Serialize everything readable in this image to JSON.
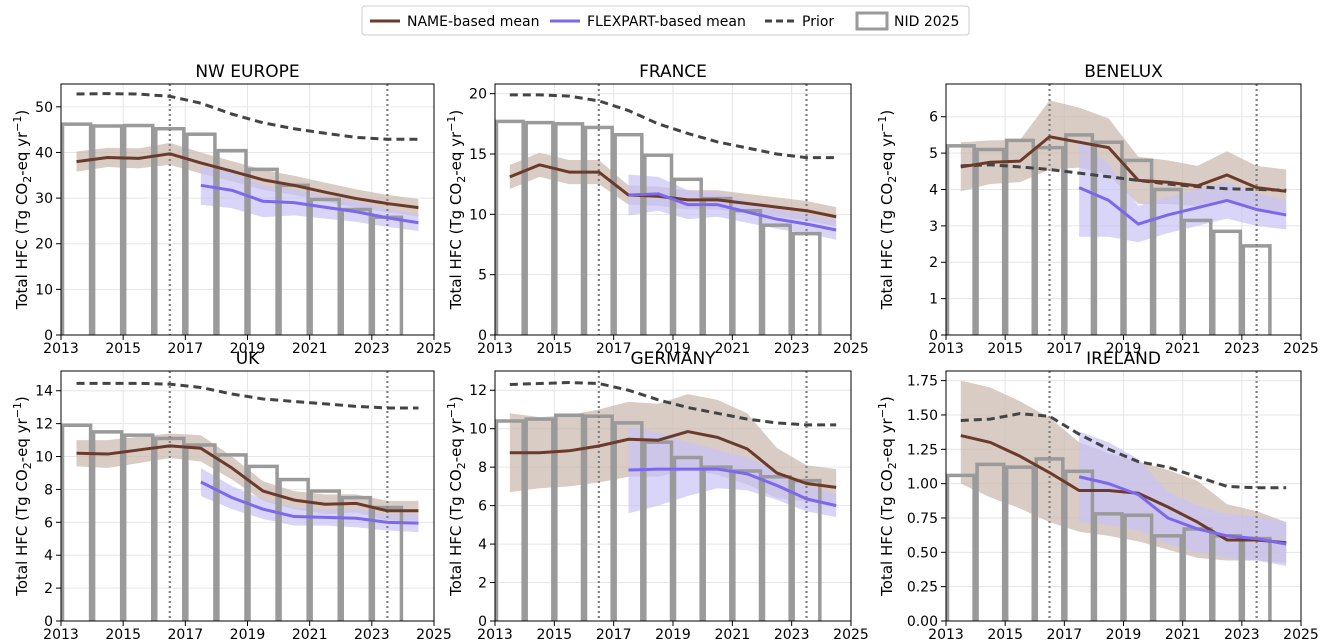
{
  "legend": {
    "name_label": "NAME-based mean",
    "flex_label": "FLEXPART-based mean",
    "prior_label": "Prior",
    "nid_label": "NID 2025"
  },
  "colors": {
    "name": "#6b3a2a",
    "name_band": "#c9b6ad",
    "flex": "#7b68ee",
    "flex_band": "#c8c3f7",
    "prior": "#444444",
    "nid_bar": "#9a9a9a",
    "vline": "#808080"
  },
  "ylabel_main": "Total HFC  (Tg CO",
  "ylabel_sub": "2",
  "ylabel_mid": "-eq yr",
  "ylabel_sup": "−1",
  "ylabel_end": ")",
  "chart_data": [
    {
      "type": "line",
      "title": "NW EUROPE",
      "xlim": [
        2013,
        2025
      ],
      "ylim": [
        0,
        55
      ],
      "yticks": [
        0,
        10,
        20,
        30,
        40,
        50
      ],
      "ytick_labels": [
        "0",
        "10",
        "20",
        "30",
        "40",
        "50"
      ],
      "xticks": [
        2013,
        2015,
        2017,
        2019,
        2021,
        2023,
        2025
      ],
      "xtick_labels": [
        "2013",
        "2015",
        "2017",
        "2019",
        "2021",
        "2023",
        "2025"
      ],
      "vlines": [
        2016.5,
        2023.5
      ],
      "nid": {
        "years": [
          2013,
          2014,
          2015,
          2016,
          2017,
          2018,
          2019,
          2020,
          2021,
          2022,
          2023
        ],
        "values": [
          46.2,
          45.8,
          45.9,
          45.2,
          44.0,
          40.4,
          36.3,
          32.8,
          29.7,
          27.5,
          25.8
        ]
      },
      "prior": {
        "x": [
          2013.5,
          2014.5,
          2015.5,
          2016.5,
          2017.5,
          2018.5,
          2019.5,
          2020.5,
          2021.5,
          2022.5,
          2023.5,
          2024.5
        ],
        "values": [
          52.8,
          52.9,
          52.8,
          52.3,
          50.8,
          48.4,
          46.5,
          45.2,
          44.2,
          43.3,
          42.9,
          42.9
        ]
      },
      "name_mean": {
        "x": [
          2013.5,
          2014.5,
          2015.5,
          2016.5,
          2017.5,
          2018.5,
          2019.5,
          2020.5,
          2021.5,
          2022.5,
          2023.5,
          2024.5
        ],
        "values": [
          38.0,
          38.9,
          38.7,
          39.7,
          37.7,
          35.9,
          34.0,
          32.8,
          31.3,
          29.9,
          28.8,
          27.9
        ],
        "lower": [
          35.8,
          36.8,
          36.5,
          37.3,
          35.4,
          33.7,
          31.8,
          30.7,
          29.2,
          27.9,
          26.9,
          26.0
        ],
        "upper": [
          40.2,
          41.0,
          40.9,
          42.1,
          40.0,
          38.1,
          36.2,
          34.9,
          33.4,
          31.9,
          30.7,
          29.8
        ]
      },
      "flex_mean": {
        "x": [
          2017.5,
          2018.5,
          2019.5,
          2020.5,
          2021.5,
          2022.5,
          2023.5,
          2024.5
        ],
        "values": [
          32.8,
          31.7,
          29.3,
          29.0,
          28.0,
          27.0,
          25.7,
          24.6
        ],
        "lower": [
          28.5,
          27.8,
          25.8,
          26.2,
          25.5,
          24.8,
          23.7,
          22.8
        ],
        "upper": [
          37.1,
          35.6,
          32.8,
          31.8,
          30.5,
          29.2,
          27.7,
          26.4
        ]
      }
    },
    {
      "type": "line",
      "title": "FRANCE",
      "xlim": [
        2013,
        2025
      ],
      "ylim": [
        0,
        20.8
      ],
      "yticks": [
        0,
        5,
        10,
        15,
        20
      ],
      "ytick_labels": [
        "0",
        "5",
        "10",
        "15",
        "20"
      ],
      "xticks": [
        2013,
        2015,
        2017,
        2019,
        2021,
        2023,
        2025
      ],
      "xtick_labels": [
        "2013",
        "2015",
        "2017",
        "2019",
        "2021",
        "2023",
        "2025"
      ],
      "vlines": [
        2016.5,
        2023.5
      ],
      "nid": {
        "years": [
          2013,
          2014,
          2015,
          2016,
          2017,
          2018,
          2019,
          2020,
          2021,
          2022,
          2023
        ],
        "values": [
          17.7,
          17.6,
          17.5,
          17.2,
          16.6,
          14.9,
          12.9,
          11.3,
          10.3,
          9.1,
          8.4
        ]
      },
      "prior": {
        "x": [
          2013.5,
          2014.5,
          2015.5,
          2016.5,
          2017.5,
          2018.5,
          2019.5,
          2020.5,
          2021.5,
          2022.5,
          2023.5,
          2024.5
        ],
        "values": [
          19.9,
          19.9,
          19.8,
          19.4,
          18.6,
          17.5,
          16.7,
          16.0,
          15.5,
          15.0,
          14.7,
          14.7
        ]
      },
      "name_mean": {
        "x": [
          2013.5,
          2014.5,
          2015.5,
          2016.5,
          2017.5,
          2018.5,
          2019.5,
          2020.5,
          2021.5,
          2022.5,
          2023.5,
          2024.5
        ],
        "values": [
          13.1,
          14.1,
          13.5,
          13.5,
          11.6,
          11.5,
          11.2,
          11.2,
          10.9,
          10.6,
          10.3,
          9.8
        ],
        "lower": [
          12.1,
          13.1,
          12.5,
          12.5,
          10.8,
          10.7,
          10.4,
          10.4,
          10.1,
          9.8,
          9.5,
          9.0
        ],
        "upper": [
          14.1,
          15.1,
          14.5,
          14.5,
          12.4,
          12.3,
          12.0,
          12.0,
          11.7,
          11.4,
          11.1,
          10.6
        ]
      },
      "flex_mean": {
        "x": [
          2017.5,
          2018.5,
          2019.5,
          2020.5,
          2021.5,
          2022.5,
          2023.5,
          2024.5
        ],
        "values": [
          11.6,
          11.7,
          10.8,
          10.8,
          10.2,
          9.6,
          9.2,
          8.7
        ],
        "lower": [
          9.9,
          10.3,
          9.6,
          9.8,
          9.3,
          8.8,
          8.4,
          7.9
        ],
        "upper": [
          13.3,
          13.1,
          12.0,
          11.8,
          11.1,
          10.4,
          10.0,
          9.5
        ]
      }
    },
    {
      "type": "line",
      "title": "BENELUX",
      "xlim": [
        2013,
        2025
      ],
      "ylim": [
        0,
        6.9
      ],
      "yticks": [
        0,
        1,
        2,
        3,
        4,
        5,
        6
      ],
      "ytick_labels": [
        "0",
        "1",
        "2",
        "3",
        "4",
        "5",
        "6"
      ],
      "xticks": [
        2013,
        2015,
        2017,
        2019,
        2021,
        2023,
        2025
      ],
      "xtick_labels": [
        "2013",
        "2015",
        "2017",
        "2019",
        "2021",
        "2023",
        "2025"
      ],
      "vlines": [
        2016.5,
        2023.5
      ],
      "nid": {
        "years": [
          2013,
          2014,
          2015,
          2016,
          2017,
          2018,
          2019,
          2020,
          2021,
          2022,
          2023
        ],
        "values": [
          5.2,
          5.1,
          5.35,
          5.15,
          5.5,
          5.3,
          4.8,
          4.0,
          3.15,
          2.85,
          2.45
        ]
      },
      "prior": {
        "x": [
          2013.5,
          2014.5,
          2015.5,
          2016.5,
          2017.5,
          2018.5,
          2019.5,
          2020.5,
          2021.5,
          2022.5,
          2023.5,
          2024.5
        ],
        "values": [
          4.65,
          4.68,
          4.62,
          4.55,
          4.45,
          4.35,
          4.25,
          4.15,
          4.08,
          4.02,
          4.0,
          3.98
        ]
      },
      "name_mean": {
        "x": [
          2013.5,
          2014.5,
          2015.5,
          2016.5,
          2017.5,
          2018.5,
          2019.5,
          2020.5,
          2021.5,
          2022.5,
          2023.5,
          2024.5
        ],
        "values": [
          4.62,
          4.75,
          4.78,
          5.45,
          5.3,
          5.15,
          4.25,
          4.2,
          4.1,
          4.4,
          4.05,
          3.95
        ],
        "lower": [
          3.95,
          4.15,
          4.2,
          4.55,
          4.6,
          4.4,
          3.6,
          3.6,
          3.55,
          3.75,
          3.45,
          3.35
        ],
        "upper": [
          5.3,
          5.35,
          5.36,
          6.45,
          6.25,
          5.95,
          4.9,
          4.8,
          4.65,
          5.05,
          4.65,
          4.55
        ]
      },
      "flex_mean": {
        "x": [
          2017.5,
          2018.5,
          2019.5,
          2020.5,
          2021.5,
          2022.5,
          2023.5,
          2024.5
        ],
        "values": [
          4.05,
          3.7,
          3.05,
          3.3,
          3.5,
          3.7,
          3.45,
          3.3
        ],
        "lower": [
          2.7,
          2.7,
          2.55,
          2.8,
          3.0,
          3.2,
          3.0,
          2.9
        ],
        "upper": [
          5.4,
          4.7,
          3.55,
          3.8,
          4.0,
          4.2,
          3.9,
          3.7
        ]
      }
    },
    {
      "type": "line",
      "title": "UK",
      "xlim": [
        2013,
        2025
      ],
      "ylim": [
        0,
        15.2
      ],
      "yticks": [
        0,
        2,
        4,
        6,
        8,
        10,
        12,
        14
      ],
      "ytick_labels": [
        "0",
        "2",
        "4",
        "6",
        "8",
        "10",
        "12",
        "14"
      ],
      "xticks": [
        2013,
        2015,
        2017,
        2019,
        2021,
        2023,
        2025
      ],
      "xtick_labels": [
        "2013",
        "2015",
        "2017",
        "2019",
        "2021",
        "2023",
        "2025"
      ],
      "vlines": [
        2016.5,
        2023.5
      ],
      "nid": {
        "years": [
          2013,
          2014,
          2015,
          2016,
          2017,
          2018,
          2019,
          2020,
          2021,
          2022,
          2023
        ],
        "values": [
          11.9,
          11.5,
          11.3,
          11.1,
          10.7,
          10.1,
          9.4,
          8.6,
          7.9,
          7.5,
          6.9
        ]
      },
      "prior": {
        "x": [
          2013.5,
          2014.5,
          2015.5,
          2016.5,
          2017.5,
          2018.5,
          2019.5,
          2020.5,
          2021.5,
          2022.5,
          2023.5,
          2024.5
        ],
        "values": [
          14.45,
          14.45,
          14.45,
          14.4,
          14.2,
          13.8,
          13.5,
          13.35,
          13.2,
          13.05,
          12.95,
          12.95
        ]
      },
      "name_mean": {
        "x": [
          2013.5,
          2014.5,
          2015.5,
          2016.5,
          2017.5,
          2018.5,
          2019.5,
          2020.5,
          2021.5,
          2022.5,
          2023.5,
          2024.5
        ],
        "values": [
          10.2,
          10.15,
          10.4,
          10.65,
          10.5,
          9.3,
          7.9,
          7.35,
          7.1,
          7.15,
          6.7,
          6.7
        ],
        "lower": [
          9.4,
          9.3,
          9.6,
          9.9,
          9.7,
          8.6,
          7.3,
          6.8,
          6.5,
          6.6,
          6.1,
          6.1
        ],
        "upper": [
          11.0,
          11.0,
          11.2,
          11.4,
          11.3,
          10.0,
          8.5,
          7.9,
          7.7,
          7.7,
          7.3,
          7.3
        ]
      },
      "flex_mean": {
        "x": [
          2017.5,
          2018.5,
          2019.5,
          2020.5,
          2021.5,
          2022.5,
          2023.5,
          2024.5
        ],
        "values": [
          8.45,
          7.5,
          6.8,
          6.35,
          6.3,
          6.25,
          6.0,
          5.95
        ],
        "lower": [
          7.6,
          6.8,
          6.2,
          5.8,
          5.8,
          5.7,
          5.5,
          5.4
        ],
        "upper": [
          9.3,
          8.2,
          7.4,
          6.9,
          6.8,
          6.8,
          6.5,
          6.5
        ]
      }
    },
    {
      "type": "line",
      "title": "GERMANY",
      "xlim": [
        2013,
        2025
      ],
      "ylim": [
        0,
        13.0
      ],
      "yticks": [
        0,
        2,
        4,
        6,
        8,
        10,
        12
      ],
      "ytick_labels": [
        "0",
        "2",
        "4",
        "6",
        "8",
        "10",
        "12"
      ],
      "xticks": [
        2013,
        2015,
        2017,
        2019,
        2021,
        2023,
        2025
      ],
      "xtick_labels": [
        "2013",
        "2015",
        "2017",
        "2019",
        "2021",
        "2023",
        "2025"
      ],
      "vlines": [
        2016.5,
        2023.5
      ],
      "nid": {
        "years": [
          2013,
          2014,
          2015,
          2016,
          2017,
          2018,
          2019,
          2020,
          2021,
          2022,
          2023
        ],
        "values": [
          10.4,
          10.5,
          10.7,
          10.65,
          10.3,
          9.3,
          8.5,
          8.0,
          7.8,
          7.5,
          7.3
        ]
      },
      "prior": {
        "x": [
          2013.5,
          2014.5,
          2015.5,
          2016.5,
          2017.5,
          2018.5,
          2019.5,
          2020.5,
          2021.5,
          2022.5,
          2023.5,
          2024.5
        ],
        "values": [
          12.3,
          12.35,
          12.4,
          12.35,
          12.0,
          11.5,
          11.1,
          10.8,
          10.5,
          10.3,
          10.2,
          10.2
        ]
      },
      "name_mean": {
        "x": [
          2013.5,
          2014.5,
          2015.5,
          2016.5,
          2017.5,
          2018.5,
          2019.5,
          2020.5,
          2021.5,
          2022.5,
          2023.5,
          2024.5
        ],
        "values": [
          8.75,
          8.75,
          8.85,
          9.1,
          9.45,
          9.4,
          9.85,
          9.55,
          8.95,
          7.7,
          7.15,
          6.95
        ],
        "lower": [
          6.7,
          6.9,
          7.0,
          7.2,
          7.5,
          7.5,
          7.9,
          7.6,
          7.1,
          6.4,
          6.2,
          6.0
        ],
        "upper": [
          10.8,
          10.6,
          10.7,
          11.0,
          11.4,
          11.3,
          11.8,
          11.5,
          10.8,
          9.0,
          8.1,
          7.9
        ]
      },
      "flex_mean": {
        "x": [
          2017.5,
          2018.5,
          2019.5,
          2020.5,
          2021.5,
          2022.5,
          2023.5,
          2024.5
        ],
        "values": [
          7.85,
          7.9,
          7.9,
          7.9,
          7.65,
          7.05,
          6.35,
          6.0
        ],
        "lower": [
          5.6,
          6.0,
          6.5,
          6.9,
          6.8,
          6.3,
          5.7,
          5.4
        ],
        "upper": [
          10.1,
          9.8,
          9.3,
          8.9,
          8.5,
          7.8,
          7.0,
          6.6
        ]
      }
    },
    {
      "type": "line",
      "title": "IRELAND",
      "xlim": [
        2013,
        2025
      ],
      "ylim": [
        0,
        1.82
      ],
      "yticks": [
        0,
        0.25,
        0.5,
        0.75,
        1.0,
        1.25,
        1.5,
        1.75
      ],
      "ytick_labels": [
        "0.00",
        "0.25",
        "0.50",
        "0.75",
        "1.00",
        "1.25",
        "1.50",
        "1.75"
      ],
      "xticks": [
        2013,
        2015,
        2017,
        2019,
        2021,
        2023,
        2025
      ],
      "xtick_labels": [
        "2013",
        "2015",
        "2017",
        "2019",
        "2021",
        "2023",
        "2025"
      ],
      "vlines": [
        2016.5,
        2023.5
      ],
      "nid": {
        "years": [
          2013,
          2014,
          2015,
          2016,
          2017,
          2018,
          2019,
          2020,
          2021,
          2022,
          2023
        ],
        "values": [
          1.06,
          1.14,
          1.12,
          1.18,
          1.09,
          0.78,
          0.77,
          0.62,
          0.67,
          0.62,
          0.6
        ]
      },
      "prior": {
        "x": [
          2013.5,
          2014.5,
          2015.5,
          2016.5,
          2017.5,
          2018.5,
          2019.5,
          2020.5,
          2021.5,
          2022.5,
          2023.5,
          2024.5
        ],
        "values": [
          1.46,
          1.47,
          1.51,
          1.49,
          1.36,
          1.25,
          1.16,
          1.12,
          1.05,
          0.98,
          0.97,
          0.97
        ]
      },
      "name_mean": {
        "x": [
          2013.5,
          2014.5,
          2015.5,
          2016.5,
          2017.5,
          2018.5,
          2019.5,
          2020.5,
          2021.5,
          2022.5,
          2023.5,
          2024.5
        ],
        "values": [
          1.35,
          1.3,
          1.2,
          1.08,
          0.95,
          0.95,
          0.93,
          0.83,
          0.72,
          0.59,
          0.59,
          0.57
        ],
        "lower": [
          1.0,
          0.9,
          0.82,
          0.72,
          0.65,
          0.62,
          0.58,
          0.52,
          0.46,
          0.44,
          0.44,
          0.42
        ],
        "upper": [
          1.75,
          1.7,
          1.6,
          1.48,
          1.3,
          1.22,
          1.16,
          1.1,
          1.02,
          0.85,
          0.8,
          0.72
        ]
      },
      "flex_mean": {
        "x": [
          2017.5,
          2018.5,
          2019.5,
          2020.5,
          2021.5,
          2022.5,
          2023.5,
          2024.5
        ],
        "values": [
          1.05,
          1.0,
          0.92,
          0.75,
          0.67,
          0.62,
          0.6,
          0.56
        ],
        "lower": [
          0.72,
          0.7,
          0.66,
          0.56,
          0.5,
          0.46,
          0.44,
          0.4
        ],
        "upper": [
          1.38,
          1.3,
          1.18,
          0.94,
          0.84,
          0.78,
          0.76,
          0.72
        ]
      }
    }
  ]
}
